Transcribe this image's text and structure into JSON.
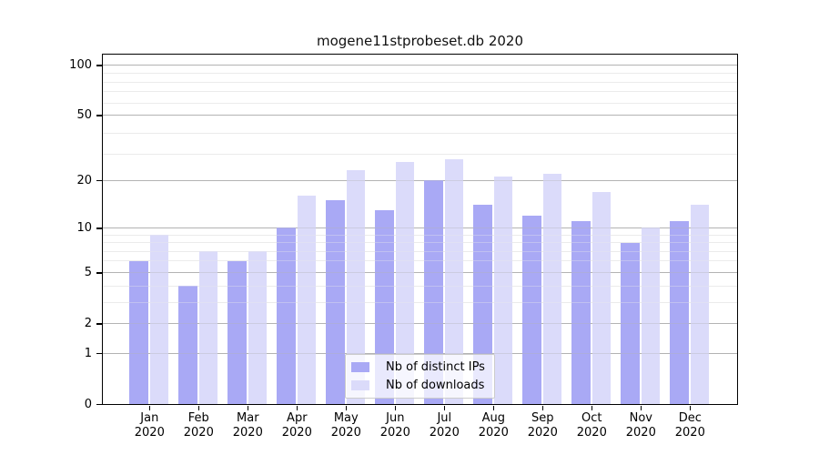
{
  "title": "mogene11stprobeset.db 2020",
  "chart_data": {
    "type": "bar",
    "title": "mogene11stprobeset.db 2020",
    "categories": [
      "Jan",
      "Feb",
      "Mar",
      "Apr",
      "May",
      "Jun",
      "Jul",
      "Aug",
      "Sep",
      "Oct",
      "Nov",
      "Dec"
    ],
    "category_year": "2020",
    "series": [
      {
        "name": "Nb of distinct IPs",
        "color": "#a9a9f5",
        "values": [
          6,
          4,
          6,
          10,
          15,
          13,
          20,
          14,
          12,
          11,
          8,
          11
        ]
      },
      {
        "name": "Nb of downloads",
        "color": "#dbdbfa",
        "values": [
          9,
          7,
          7,
          16,
          23,
          26,
          27,
          21,
          22,
          17,
          10,
          14
        ]
      }
    ],
    "xlabel": "",
    "ylabel": "",
    "yscale": "log1p",
    "yticks": [
      0,
      1,
      2,
      5,
      10,
      20,
      50,
      100
    ],
    "ylim": [
      0,
      116
    ],
    "grid": true,
    "legend_position": "lower-center-inside",
    "colors": {
      "major_grid": "#b3b3b3",
      "minor_grid": "#ebebeb",
      "axis": "#000000",
      "background": "#ffffff"
    }
  }
}
